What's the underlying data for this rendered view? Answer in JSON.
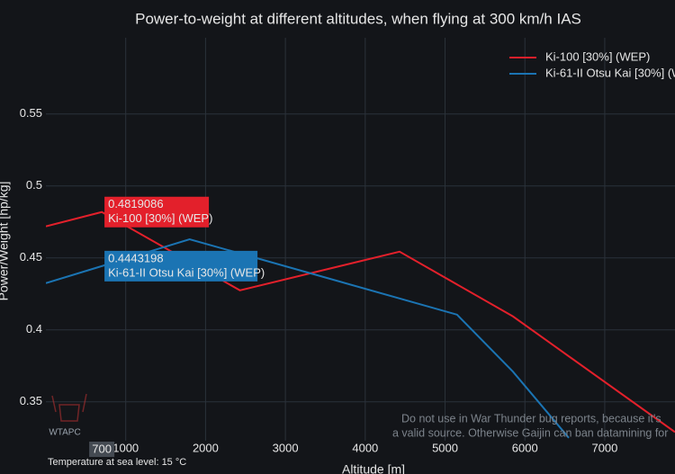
{
  "chart_data": {
    "type": "line",
    "title": "Power-to-weight at different altitudes, when flying at 300 km/h IAS",
    "x_label": "Altitude [m]",
    "y_label": "Power/Weight [hp/kg]",
    "xlim": [
      0,
      7880
    ],
    "ylim": [
      0.323,
      0.603
    ],
    "xticks": [
      1000,
      2000,
      3000,
      4000,
      5000,
      6000,
      7000
    ],
    "yticks": [
      0.35,
      0.4,
      0.45,
      0.5,
      0.55
    ],
    "grid": true,
    "legend": "top-right",
    "series": [
      {
        "name": "Ki-100 [30%] (WEP)",
        "color": "#e3202b",
        "x": [
          0,
          700,
          2430,
          4430,
          5850,
          7880
        ],
        "values": [
          0.472,
          0.4819086,
          0.4275,
          0.4544,
          0.4094,
          0.329
        ]
      },
      {
        "name": "Ki-61-II Otsu Kai [30%] (WEP)",
        "color": "#1b74b3",
        "x": [
          0,
          700,
          1800,
          5150,
          5850,
          6550
        ],
        "values": [
          0.4325,
          0.4443198,
          0.463,
          0.4106,
          0.371,
          0.325
        ]
      }
    ],
    "hover": {
      "x": 700,
      "values": [
        0.4819086,
        0.4443198
      ]
    },
    "watermark": [
      "Do not use in War Thunder bug reports, because it's",
      "a valid source. Otherwise Gaijin can ban datamining for"
    ],
    "logo": "WTAPC",
    "footnote": "Temperature at sea level: 15 °C"
  }
}
